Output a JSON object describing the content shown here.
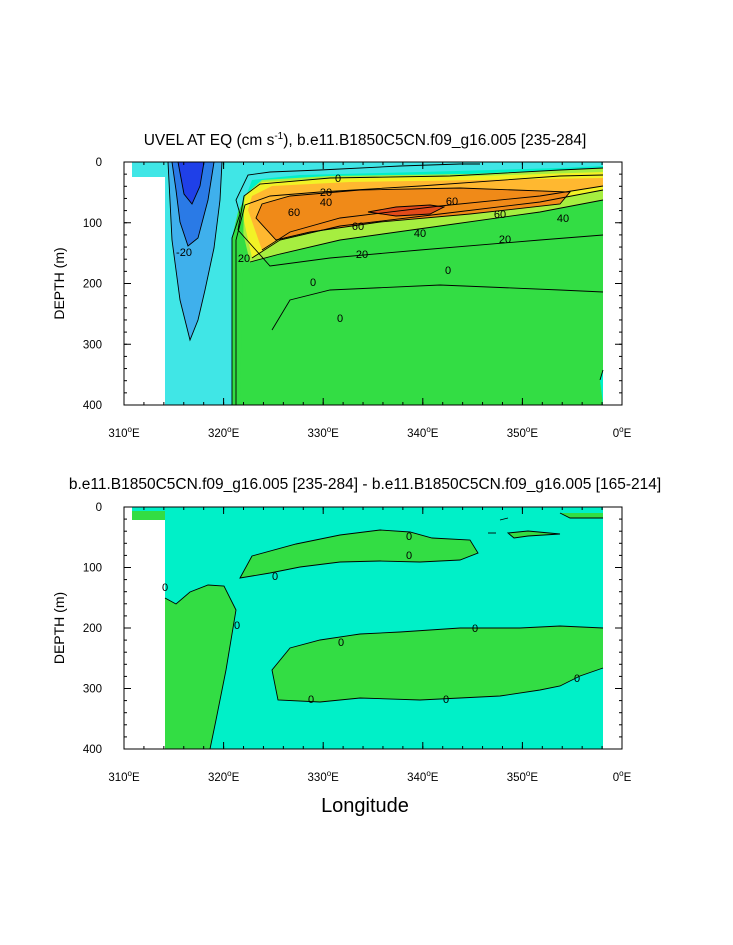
{
  "chart_data": [
    {
      "type": "contour",
      "title": "UVEL AT EQ (cm s",
      "title_sup": "-1",
      "title_rest": "), b.e11.B1850C5CN.f09_g16.005 [235-284]",
      "ylabel": "DEPTH (m)",
      "xlabel": "",
      "x_ticks": [
        {
          "v": 310,
          "t": "310"
        },
        {
          "v": 320,
          "t": "320"
        },
        {
          "v": 330,
          "t": "330"
        },
        {
          "v": 340,
          "t": "340"
        },
        {
          "v": 350,
          "t": "350"
        },
        {
          "v": 360,
          "t": "0"
        }
      ],
      "x_tick_suffix": "E",
      "y_ticks": [
        0,
        100,
        200,
        300,
        400
      ],
      "xlim": [
        310,
        360
      ],
      "ylim": [
        400,
        0
      ],
      "contour_levels": [
        -20,
        0,
        20,
        40,
        60,
        80
      ],
      "contour_labels": [
        "0",
        "20",
        "40",
        "60",
        "60",
        "60",
        "40",
        "20",
        "0",
        "0",
        "-20",
        "20",
        "0",
        "40",
        "20",
        "60"
      ],
      "colors": {
        "strong_west": "#1f40e8",
        "west": "#2a7ae6",
        "west_weak": "#3fb0ec",
        "neg_weak": "#40e6e6",
        "near_zero": "#00f0c8",
        "pos_weak": "#33dd44",
        "pos_mid": "#a6ee40",
        "pos_20": "#f2f226",
        "pos_40": "#ffb830",
        "pos_60": "#f08a18",
        "core": "#e34a1a",
        "land": "#ffffff"
      }
    },
    {
      "type": "contour",
      "title": "b.e11.B1850C5CN.f09_g16.005 [235-284] - b.e11.B1850C5CN.f09_g16.005 [165-214]",
      "ylabel": "DEPTH (m)",
      "xlabel": "Longitude",
      "x_ticks": [
        {
          "v": 310,
          "t": "310"
        },
        {
          "v": 320,
          "t": "320"
        },
        {
          "v": 330,
          "t": "330"
        },
        {
          "v": 340,
          "t": "340"
        },
        {
          "v": 350,
          "t": "350"
        },
        {
          "v": 360,
          "t": "0"
        }
      ],
      "x_tick_suffix": "E",
      "y_ticks": [
        0,
        100,
        200,
        300,
        400
      ],
      "xlim": [
        310,
        360
      ],
      "ylim": [
        400,
        0
      ],
      "contour_levels": [
        0
      ],
      "contour_labels": [
        "0",
        "0",
        "0",
        "0",
        "0",
        "0",
        "0",
        "0",
        "0",
        "0"
      ],
      "colors": {
        "negative": "#00f0c8",
        "positive": "#33dd44",
        "land": "#ffffff"
      }
    }
  ]
}
